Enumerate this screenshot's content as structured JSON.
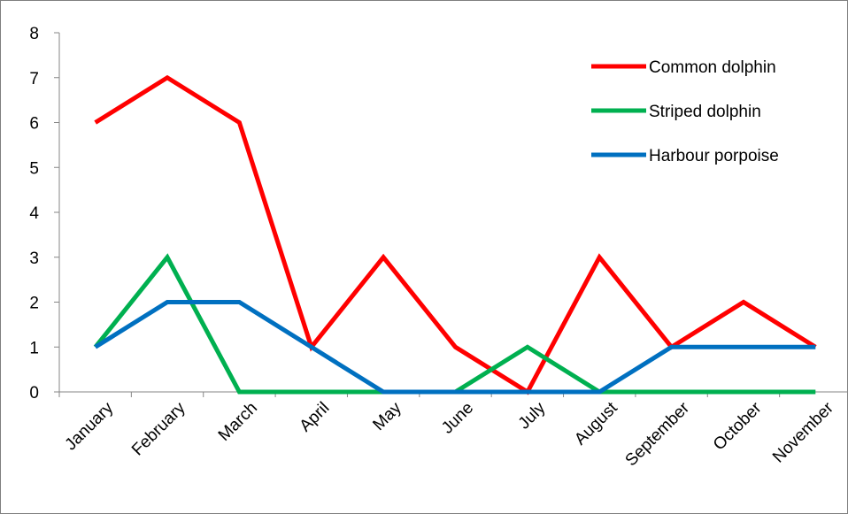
{
  "chart_data": {
    "type": "line",
    "title": "",
    "xlabel": "",
    "ylabel": "",
    "categories": [
      "January",
      "February",
      "March",
      "April",
      "May",
      "June",
      "July",
      "August",
      "September",
      "October",
      "November"
    ],
    "ylim": [
      0,
      8
    ],
    "yticks": [
      0,
      1,
      2,
      3,
      4,
      5,
      6,
      7,
      8
    ],
    "grid": false,
    "legend_position": "top-right",
    "series": [
      {
        "name": "Common dolphin",
        "color": "#ff0000",
        "values": [
          6,
          7,
          6,
          1,
          3,
          1,
          0,
          3,
          1,
          2,
          1
        ]
      },
      {
        "name": "Striped dolphin",
        "color": "#00b050",
        "values": [
          1,
          3,
          0,
          0,
          0,
          0,
          1,
          0,
          0,
          0,
          0
        ]
      },
      {
        "name": "Harbour porpoise",
        "color": "#0070c0",
        "values": [
          1,
          2,
          2,
          1,
          0,
          0,
          0,
          0,
          1,
          1,
          1
        ]
      }
    ]
  }
}
